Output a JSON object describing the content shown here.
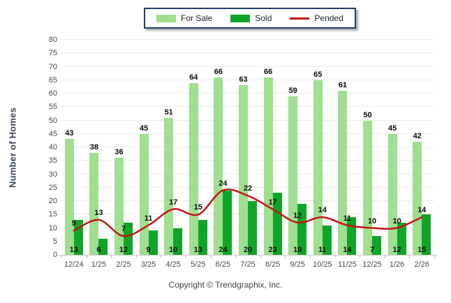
{
  "legend": {
    "items": [
      {
        "label": "For Sale",
        "swatch": "box",
        "color": "#9FDF8F"
      },
      {
        "label": "Sold",
        "swatch": "box",
        "color": "#0FA528"
      },
      {
        "label": "Pended",
        "swatch": "line",
        "color": "#C41414"
      }
    ]
  },
  "axes": {
    "y_label": "Number of Homes"
  },
  "footer": {
    "copyright": "Copyright © Trendgraphix, Inc."
  },
  "colors": {
    "for_sale": "#9FDF8F",
    "sold": "#0FA528",
    "pended": "#C41414",
    "grid": "#EBEBEB",
    "axis_text": "#3D4A57",
    "legend_border": "#1E3D6B"
  },
  "chart_data": {
    "type": "bar",
    "title": "",
    "xlabel": "",
    "ylabel": "Number of Homes",
    "ylim": [
      0,
      80
    ],
    "ytick_step": 5,
    "grid": true,
    "legend_position": "top-center",
    "categories": [
      "12/24",
      "1/25",
      "2/25",
      "3/25",
      "4/25",
      "5/25",
      "6/25",
      "7/25",
      "8/25",
      "9/25",
      "10/25",
      "11/25",
      "12/25",
      "1/26",
      "2/26"
    ],
    "series": [
      {
        "name": "For Sale",
        "type": "bar",
        "color": "#9FDF8F",
        "values": [
          43,
          38,
          36,
          45,
          51,
          64,
          66,
          63,
          66,
          59,
          65,
          61,
          50,
          45,
          42
        ]
      },
      {
        "name": "Sold",
        "type": "bar",
        "color": "#0FA528",
        "values": [
          13,
          6,
          12,
          9,
          10,
          13,
          24,
          20,
          23,
          19,
          11,
          14,
          7,
          12,
          15
        ]
      },
      {
        "name": "Pended",
        "type": "line",
        "color": "#C41414",
        "values": [
          9,
          13,
          7,
          11,
          17,
          15,
          24,
          22,
          17,
          12,
          14,
          11,
          10,
          10,
          14
        ]
      }
    ]
  }
}
